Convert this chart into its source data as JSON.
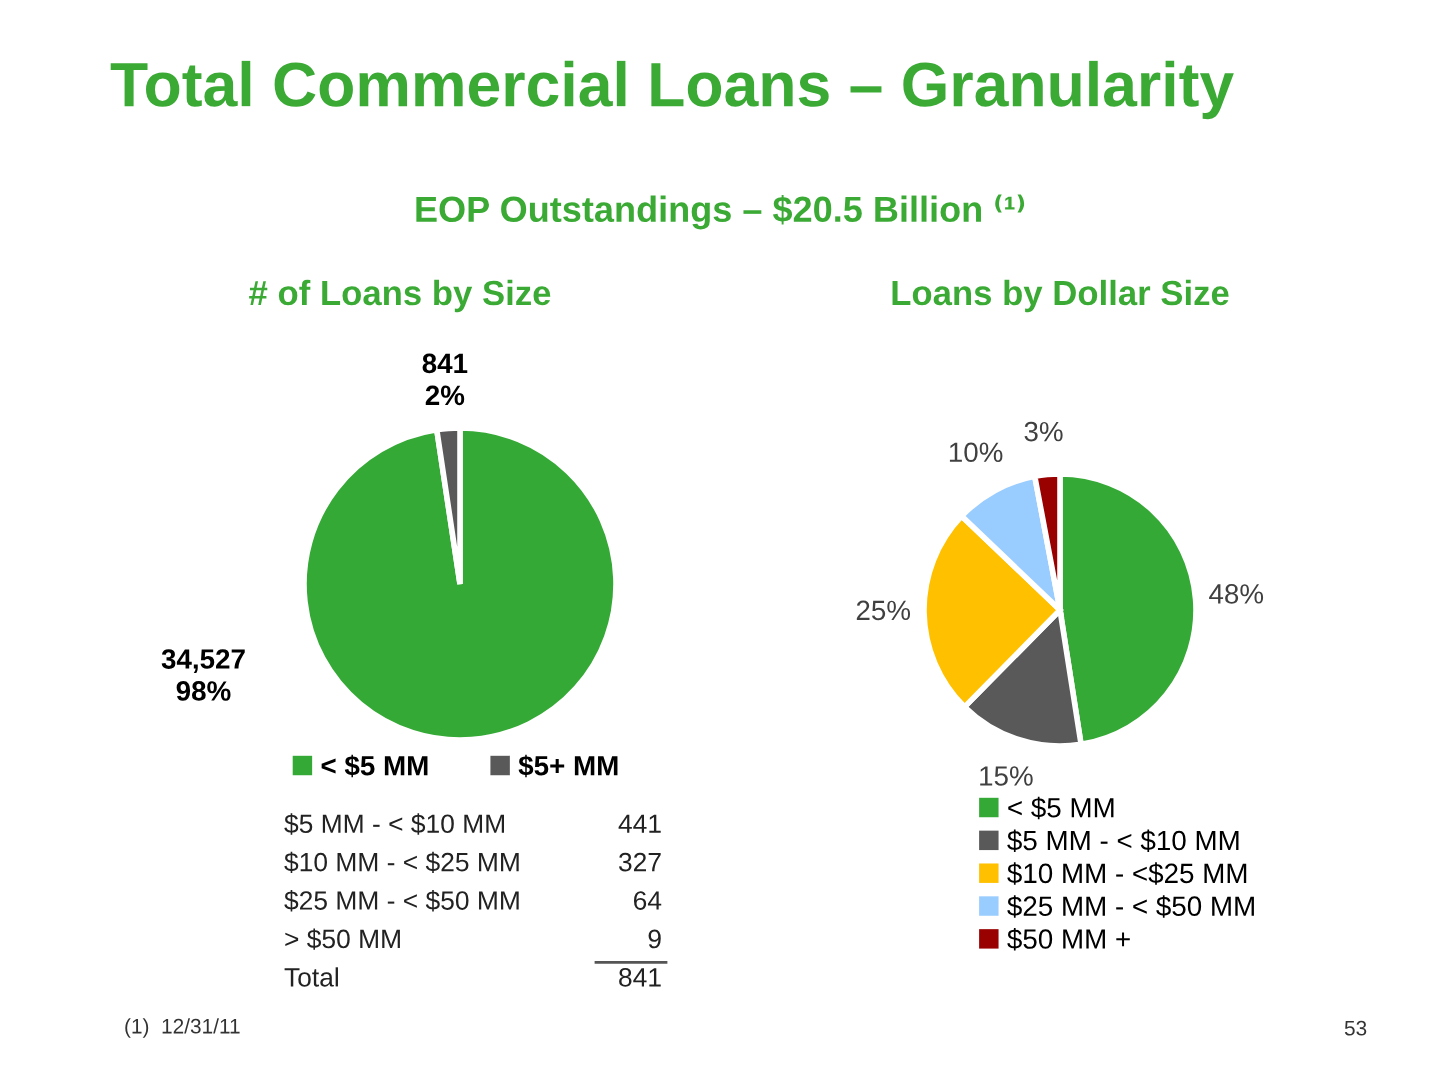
{
  "chart_data": [
    {
      "type": "other",
      "title": "Total Commercial Loans – Granularity",
      "subtitle": "EOP Outstandings – $20.5 Billion ⁽¹⁾",
      "annotations": [
        "(1)  12/31/11",
        "53"
      ]
    },
    {
      "type": "pie",
      "title": "# of Loans by Size",
      "categories": [
        "< $5 MM",
        "$5+ MM"
      ],
      "values": [
        34527,
        841
      ],
      "value_labels": [
        "34,527\n98%",
        "841\n2%"
      ],
      "colors": [
        "#35a936",
        "#595959"
      ],
      "legend": "bottom"
    },
    {
      "type": "pie",
      "title": "Loans by Dollar Size",
      "categories": [
        "< $5 MM",
        "$5 MM - < $10 MM",
        "$10 MM - <$25 MM",
        "$25 MM - < $50 MM",
        "$50 MM +"
      ],
      "values": [
        48,
        15,
        25,
        10,
        3
      ],
      "value_labels": [
        "48%",
        "15%",
        "25%",
        "10%",
        "3%"
      ],
      "colors": [
        "#35a936",
        "#595959",
        "#ffc000",
        "#99ccff",
        "#990000"
      ],
      "legend": "bottom"
    },
    {
      "type": "other",
      "categories": [
        "$5 MM - < $10 MM",
        "$10 MM - < $25 MM",
        "$25 MM - < $50 MM",
        "> $50 MM",
        "Total"
      ],
      "values": [
        441,
        327,
        64,
        9,
        841
      ],
      "data_labels": true
    }
  ]
}
